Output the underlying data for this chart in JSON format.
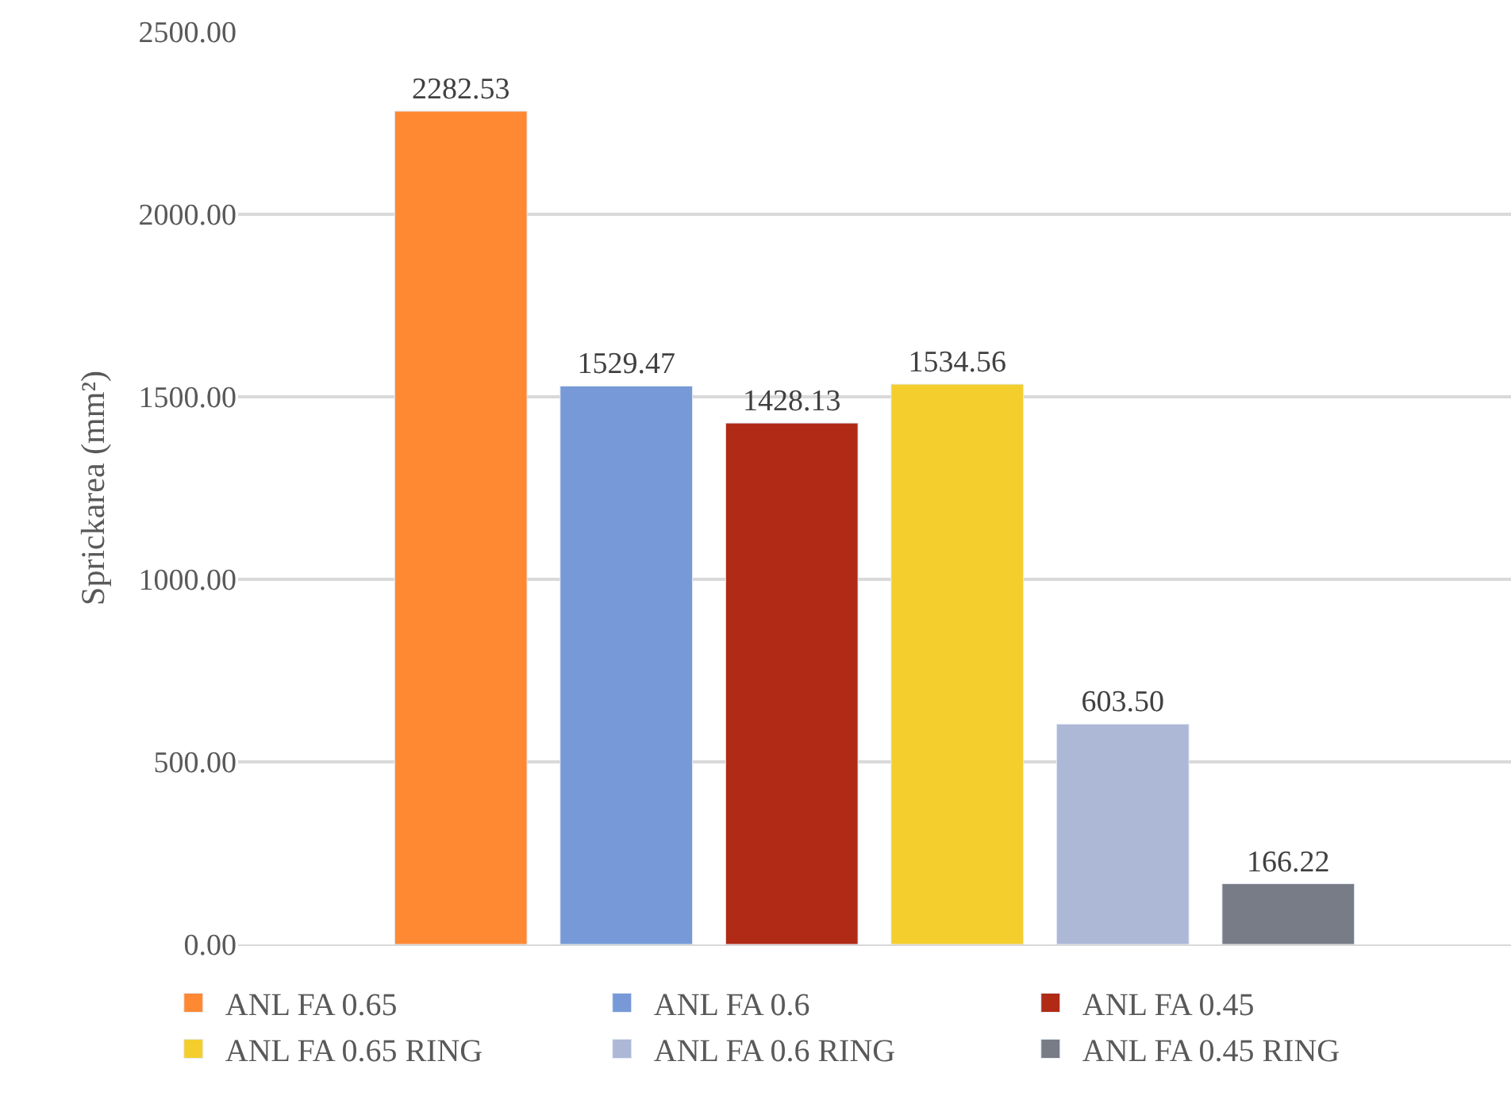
{
  "chart_data": {
    "type": "bar",
    "ylabel": "Sprickarea (mm²)",
    "categories": [
      null
    ],
    "series": [
      {
        "name": "ANL FA 0.65",
        "color": "#ff8833",
        "values": [
          2282.53
        ],
        "value_labels": [
          "2282.53"
        ]
      },
      {
        "name": "ANL FA 0.6",
        "color": "#7799d7",
        "values": [
          1529.47
        ],
        "value_labels": [
          "1529.47"
        ]
      },
      {
        "name": "ANL FA 0.45",
        "color": "#b02a16",
        "values": [
          1428.13
        ],
        "value_labels": [
          "1428.13"
        ]
      },
      {
        "name": "ANL FA 0.65 RING",
        "color": "#f4ce2c",
        "values": [
          1534.56
        ],
        "value_labels": [
          "1534.56"
        ]
      },
      {
        "name": "ANL FA 0.6 RING",
        "color": "#adb8d6",
        "values": [
          603.5
        ],
        "value_labels": [
          "603.50"
        ]
      },
      {
        "name": "ANL FA 0.45 RING",
        "color": "#787c86",
        "values": [
          166.22
        ],
        "value_labels": [
          "166.22"
        ]
      }
    ],
    "ylim": [
      0,
      2500
    ],
    "yticks": [
      {
        "value": 0,
        "label": "0.00"
      },
      {
        "value": 500,
        "label": "500.00"
      },
      {
        "value": 1000,
        "label": "1000.00"
      },
      {
        "value": 1500,
        "label": "1500.00"
      },
      {
        "value": 2000,
        "label": "2000.00"
      },
      {
        "value": 2500,
        "label": "2500.00"
      }
    ],
    "grid": "y",
    "legend": "bottom"
  }
}
